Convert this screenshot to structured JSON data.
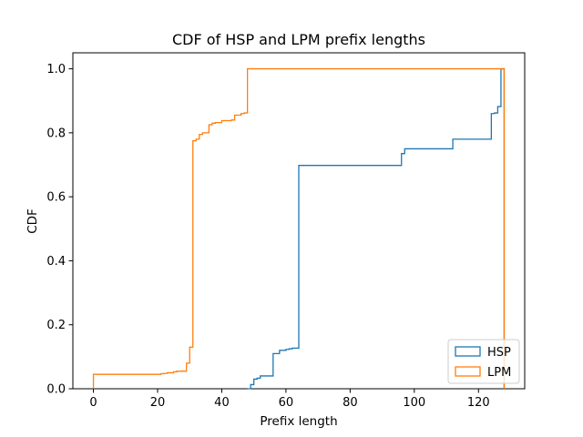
{
  "chart_data": {
    "type": "line",
    "title": "CDF of HSP and LPM prefix lengths",
    "xlabel": "Prefix length",
    "ylabel": "CDF",
    "xlim": [
      -6.4,
      134.4
    ],
    "ylim": [
      0,
      1.05
    ],
    "xticks": [
      0,
      20,
      40,
      60,
      80,
      100,
      120
    ],
    "yticks": [
      0.0,
      0.2,
      0.4,
      0.6,
      0.8,
      1.0
    ],
    "xtick_labels": [
      "0",
      "20",
      "40",
      "60",
      "80",
      "100",
      "120"
    ],
    "ytick_labels": [
      "0.0",
      "0.2",
      "0.4",
      "0.6",
      "0.8",
      "1.0"
    ],
    "grid": false,
    "legend_position": "lower-right",
    "series": [
      {
        "name": "HSP",
        "color": "#1f77b4",
        "edges": [
          48,
          49,
          50,
          51,
          52,
          53,
          54,
          55,
          56,
          57,
          58,
          59,
          60,
          61,
          62,
          63,
          64,
          96,
          97,
          112,
          124,
          125,
          126,
          127,
          128
        ],
        "cdf": [
          0.0,
          0.013,
          0.03,
          0.033,
          0.04,
          0.04,
          0.04,
          0.04,
          0.11,
          0.11,
          0.12,
          0.12,
          0.123,
          0.125,
          0.127,
          0.127,
          0.698,
          0.735,
          0.75,
          0.78,
          0.86,
          0.862,
          0.882,
          1.0
        ]
      },
      {
        "name": "LPM",
        "color": "#ff7f0e",
        "edges": [
          0,
          1,
          20,
          21,
          22,
          23,
          24,
          25,
          26,
          27,
          28,
          29,
          30,
          31,
          32,
          33,
          34,
          36,
          37,
          38,
          40,
          41,
          42,
          43,
          44,
          45,
          46,
          47,
          48,
          127,
          128
        ],
        "cdf": [
          0.045,
          0.045,
          0.045,
          0.047,
          0.048,
          0.05,
          0.05,
          0.053,
          0.055,
          0.055,
          0.055,
          0.08,
          0.13,
          0.775,
          0.78,
          0.795,
          0.8,
          0.825,
          0.83,
          0.832,
          0.838,
          0.838,
          0.838,
          0.84,
          0.855,
          0.855,
          0.86,
          0.862,
          1.0,
          1.0
        ]
      }
    ]
  }
}
